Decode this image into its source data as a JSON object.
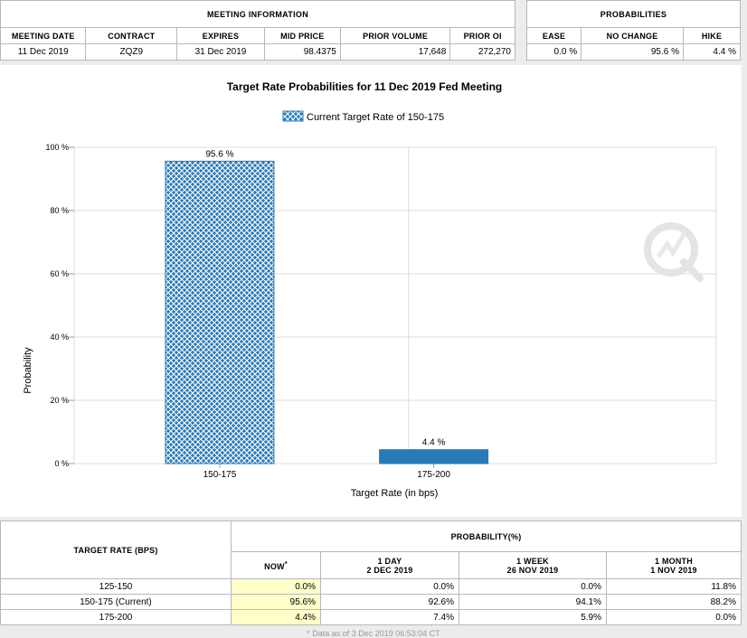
{
  "meeting_info": {
    "title": "MEETING INFORMATION",
    "headers": [
      "MEETING DATE",
      "CONTRACT",
      "EXPIRES",
      "MID PRICE",
      "PRIOR VOLUME",
      "PRIOR OI"
    ],
    "row": [
      "11 Dec 2019",
      "ZQZ9",
      "31 Dec 2019",
      "98.4375",
      "17,648",
      "272,270"
    ]
  },
  "probabilities": {
    "title": "PROBABILITIES",
    "headers": [
      "EASE",
      "NO CHANGE",
      "HIKE"
    ],
    "row": [
      "0.0 %",
      "95.6 %",
      "4.4 %"
    ]
  },
  "chart_data": {
    "type": "bar",
    "title": "Target Rate Probabilities for 11 Dec 2019 Fed Meeting",
    "legend": "Current Target Rate of 150-175",
    "categories": [
      "150-175",
      "175-200"
    ],
    "values": [
      95.6,
      4.4
    ],
    "value_labels": [
      "95.6 %",
      "4.4 %"
    ],
    "bar_styles": [
      "hatched",
      "solid"
    ],
    "xlabel": "Target Rate (in bps)",
    "ylabel": "Probability",
    "ylim": [
      0,
      100
    ],
    "yticks": [
      "0 %",
      "20 %",
      "40 %",
      "60 %",
      "80 %",
      "100 %"
    ],
    "ytick_values": [
      0,
      20,
      40,
      60,
      80,
      100
    ],
    "grid": true,
    "colors": {
      "bar": "#2a7ab8",
      "hatch_light": "#ffffff",
      "grid": "#dddddd"
    }
  },
  "bottom_table": {
    "col1_header": "TARGET RATE (BPS)",
    "prob_header": "PROBABILITY(%)",
    "now_label": "NOW",
    "now_mark": "*",
    "periods": [
      {
        "label": "1 DAY",
        "date": "2 DEC 2019"
      },
      {
        "label": "1 WEEK",
        "date": "26 NOV 2019"
      },
      {
        "label": "1 MONTH",
        "date": "1 NOV 2019"
      }
    ],
    "rows": [
      {
        "rate": "125-150",
        "now": "0.0%",
        "day": "0.0%",
        "week": "0.0%",
        "month": "11.8%"
      },
      {
        "rate": "150-175 (Current)",
        "now": "95.6%",
        "day": "92.6%",
        "week": "94.1%",
        "month": "88.2%"
      },
      {
        "rate": "175-200",
        "now": "4.4%",
        "day": "7.4%",
        "week": "5.9%",
        "month": "0.0%"
      }
    ],
    "footnote": "* Data as of 3 Dec 2019 06:53:04 CT"
  }
}
